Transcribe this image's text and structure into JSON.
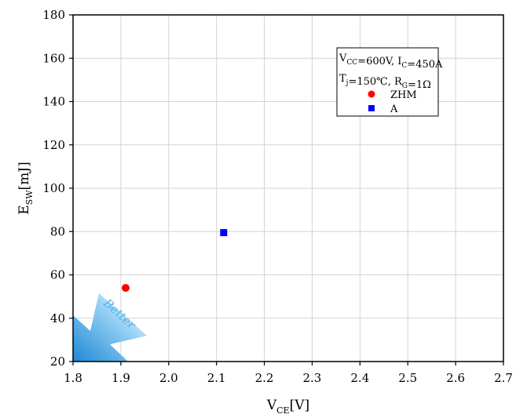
{
  "chart_data": {
    "type": "scatter",
    "xlabel": {
      "main": "V",
      "sub": "CE",
      "unit": "[V]"
    },
    "ylabel": {
      "main": "E",
      "sub": "SW",
      "unit": "[mJ]"
    },
    "xlim": [
      1.8,
      2.7
    ],
    "ylim": [
      20,
      180
    ],
    "xticks": [
      1.8,
      1.9,
      2.0,
      2.1,
      2.2,
      2.3,
      2.4,
      2.5,
      2.6,
      2.7
    ],
    "xtick_labels": [
      "1.8",
      "1.9",
      "2.0",
      "2.1",
      "2.2",
      "2.3",
      "2.4",
      "2.5",
      "2.6",
      "2.7"
    ],
    "yticks": [
      20,
      40,
      60,
      80,
      100,
      120,
      140,
      160,
      180
    ],
    "ytick_labels": [
      "20",
      "40",
      "60",
      "80",
      "100",
      "120",
      "140",
      "160",
      "180"
    ],
    "grid": true,
    "legend_position": "top-right",
    "conditions": [
      {
        "parts": [
          [
            "V",
            ""
          ],
          [
            "CC",
            "sub"
          ],
          [
            "=600V, I",
            ""
          ],
          [
            "C",
            "sub"
          ],
          [
            "=450A",
            ""
          ]
        ]
      },
      {
        "parts": [
          [
            "T",
            ""
          ],
          [
            "j",
            "sub"
          ],
          [
            "=150℃, R",
            ""
          ],
          [
            "G",
            "sub"
          ],
          [
            "=1Ω",
            ""
          ]
        ]
      }
    ],
    "series": [
      {
        "name": "ZHM",
        "marker": "circle",
        "color": "#ff0000",
        "x": [
          1.91
        ],
        "y": [
          54
        ]
      },
      {
        "name": "A",
        "marker": "square",
        "color": "#0000ff",
        "x": [
          2.115
        ],
        "y": [
          79.5
        ]
      }
    ],
    "annotation": {
      "text": "Better",
      "color": "#4fb3e8"
    }
  }
}
